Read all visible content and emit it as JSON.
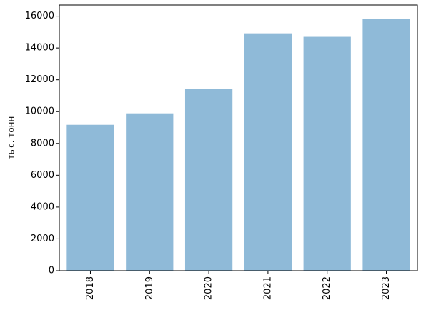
{
  "chart_data": {
    "type": "bar",
    "ylabel": "тыс. тонн",
    "categories": [
      "2018",
      "2019",
      "2020",
      "2021",
      "2022",
      "2023"
    ],
    "values": [
      9170,
      9890,
      11420,
      14920,
      14700,
      15820
    ],
    "color": "#8fbad8",
    "ylim": [
      0,
      16700
    ],
    "yticks": [
      0,
      2000,
      4000,
      6000,
      8000,
      10000,
      12000,
      14000,
      16000
    ],
    "grid": false
  }
}
